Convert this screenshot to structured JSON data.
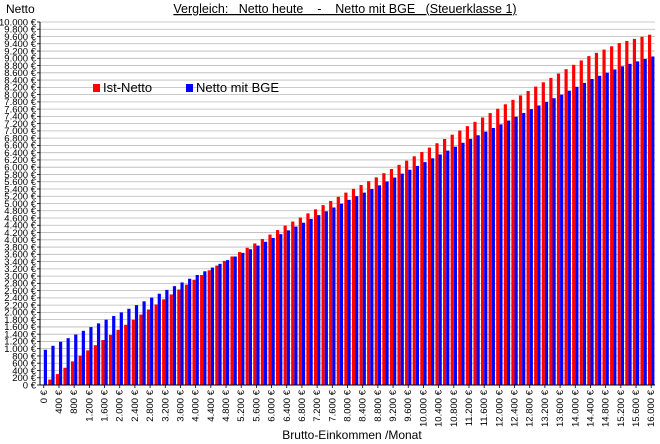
{
  "chart_data": {
    "type": "bar",
    "title": "Vergleich:   Netto heute    -    Netto mit BGE   (Steuerklasse 1)",
    "ylabel": "Netto",
    "xlabel": "Brutto-Einkommen /Monat",
    "ylim": [
      0,
      10000
    ],
    "ytick_step": 200,
    "grid": true,
    "legend_position": "top-left",
    "x_start": 0,
    "x_end": 16000,
    "x_step": 200,
    "xtick_step": 400,
    "value_unit": "€",
    "series": [
      {
        "name": "Ist-Netto",
        "color": "#ff0000",
        "curve": [
          [
            0,
            0
          ],
          [
            400,
            300
          ],
          [
            800,
            650
          ],
          [
            1000,
            810
          ],
          [
            1600,
            1240
          ],
          [
            2400,
            1800
          ],
          [
            3200,
            2360
          ],
          [
            4000,
            2900
          ],
          [
            4800,
            3420
          ],
          [
            5600,
            3900
          ],
          [
            6400,
            4390
          ],
          [
            7200,
            4840
          ],
          [
            8000,
            5300
          ],
          [
            8800,
            5720
          ],
          [
            9600,
            6180
          ],
          [
            10400,
            6660
          ],
          [
            11200,
            7130
          ],
          [
            12000,
            7610
          ],
          [
            12800,
            8100
          ],
          [
            13600,
            8580
          ],
          [
            14400,
            9060
          ],
          [
            15200,
            9420
          ],
          [
            16000,
            9650
          ]
        ]
      },
      {
        "name": "Netto mit BGE",
        "color": "#0000ff",
        "curve": [
          [
            0,
            970
          ],
          [
            400,
            1190
          ],
          [
            800,
            1390
          ],
          [
            1600,
            1800
          ],
          [
            2400,
            2200
          ],
          [
            3200,
            2620
          ],
          [
            4000,
            3030
          ],
          [
            4800,
            3440
          ],
          [
            5600,
            3840
          ],
          [
            6400,
            4260
          ],
          [
            7200,
            4680
          ],
          [
            8000,
            5100
          ],
          [
            8800,
            5500
          ],
          [
            9600,
            5930
          ],
          [
            10400,
            6350
          ],
          [
            11200,
            6780
          ],
          [
            12000,
            7180
          ],
          [
            12800,
            7600
          ],
          [
            13600,
            8000
          ],
          [
            14400,
            8430
          ],
          [
            15200,
            8780
          ],
          [
            16000,
            9050
          ]
        ]
      }
    ]
  }
}
